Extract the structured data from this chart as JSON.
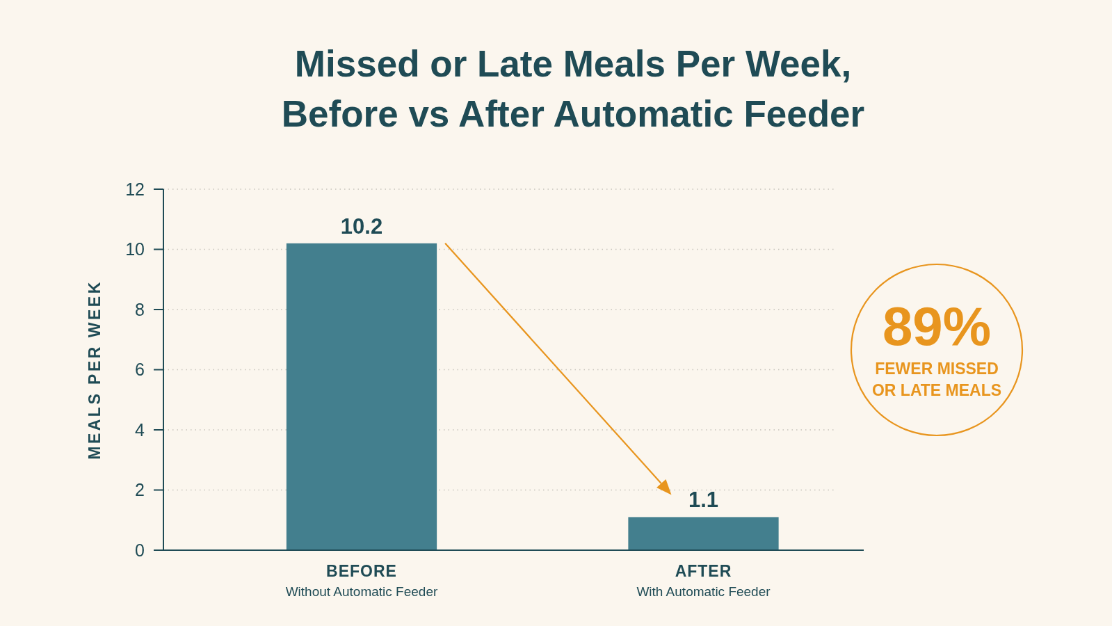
{
  "chart_data": {
    "type": "bar",
    "title": "Missed or Late Meals Per Week, Before vs After Automatic Feeder",
    "ylabel": "MEALS PER WEEK",
    "categories": [
      "BEFORE\nWithout Automatic Feeder",
      "AFTER\nWith Automatic Feeder"
    ],
    "values": [
      10.2,
      1.1
    ],
    "color": "#437f8e",
    "ylim": [
      0,
      12
    ],
    "yticks": [
      0,
      2,
      4,
      6,
      8,
      10,
      12
    ],
    "grid": "y",
    "data_labels": true,
    "annotations": [
      "89%",
      "FEWER MISSED OR LATE MEALS"
    ]
  }
}
